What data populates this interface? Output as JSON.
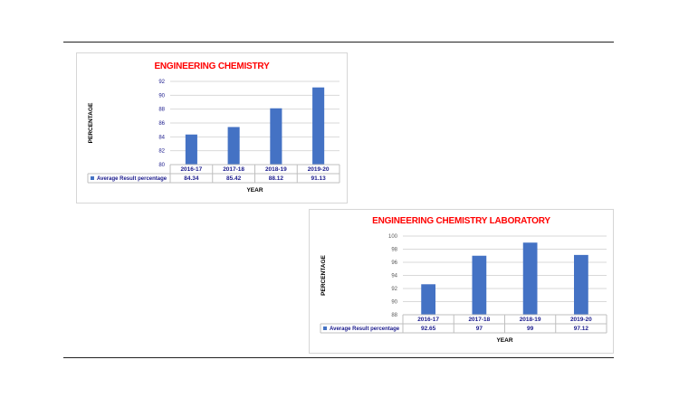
{
  "chart_data": [
    {
      "type": "bar",
      "title": "ENGINEERING CHEMISTRY",
      "xlabel": "YEAR",
      "ylabel": "PERCENTAGE",
      "categories": [
        "2016-17",
        "2017-18",
        "2018-19",
        "2019-20"
      ],
      "series": [
        {
          "name": "Average Result percentage",
          "values": [
            84.34,
            85.42,
            88.12,
            91.13
          ]
        }
      ],
      "value_labels": [
        "84.34",
        "85.42",
        "88.12",
        "91.13"
      ],
      "ylim": [
        80,
        92
      ],
      "yticks": [
        80,
        82,
        84,
        86,
        88,
        90,
        92
      ],
      "grid": true,
      "legend": "data-table-left",
      "colors": {
        "bar": "#4472c4",
        "title": "#ff0000",
        "text": "#1a1a8c"
      }
    },
    {
      "type": "bar",
      "title": "ENGINEERING CHEMISTRY LABORATORY",
      "xlabel": "YEAR",
      "ylabel": "PERCENTAGE",
      "categories": [
        "2016-17",
        "2017-18",
        "2018-19",
        "2019-20"
      ],
      "series": [
        {
          "name": "Average Result percentage",
          "values": [
            92.65,
            97,
            99,
            97.12
          ]
        }
      ],
      "value_labels": [
        "92.65",
        "97",
        "99",
        "97.12"
      ],
      "ylim": [
        88,
        100
      ],
      "yticks": [
        88,
        90,
        92,
        94,
        96,
        98,
        100
      ],
      "grid": true,
      "legend": "data-table-left",
      "colors": {
        "bar": "#4472c4",
        "title": "#ff0000",
        "text": "#1a1a8c"
      }
    }
  ]
}
